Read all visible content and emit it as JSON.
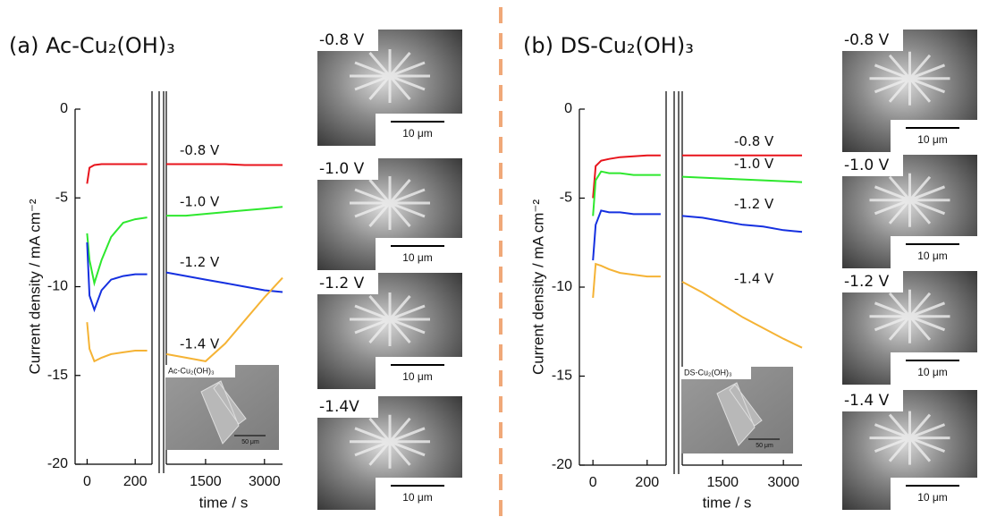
{
  "chart_data": [
    {
      "type": "line",
      "title": "(a) Ac-Cu₂(OH)₃",
      "ylabel": "Current density / mA cm⁻²",
      "xlabel": "time / s",
      "ylim": [
        -20,
        0
      ],
      "yticks": [
        0,
        -5,
        -10,
        -15,
        -20
      ],
      "x_segments": [
        {
          "xlim": [
            -50,
            270
          ],
          "xticks": [
            0,
            200
          ]
        },
        {
          "xlim": [
            500,
            3460
          ],
          "xticks": [
            1500,
            3000
          ]
        }
      ],
      "x": [
        0,
        10,
        30,
        60,
        100,
        150,
        200,
        250,
        500,
        1000,
        1500,
        2000,
        2500,
        3000,
        3460
      ],
      "series": [
        {
          "name": "-0.8 V",
          "color": "#e8141c",
          "values": [
            -4.2,
            -3.3,
            -3.15,
            -3.1,
            -3.1,
            -3.1,
            -3.1,
            -3.1,
            -3.1,
            -3.1,
            -3.1,
            -3.1,
            -3.15,
            -3.15,
            -3.15
          ]
        },
        {
          "name": "-1.0 V",
          "color": "#2ee82e",
          "values": [
            -7.0,
            -8.5,
            -9.8,
            -8.5,
            -7.2,
            -6.4,
            -6.2,
            -6.1,
            -6.0,
            -6.0,
            -5.9,
            -5.8,
            -5.7,
            -5.6,
            -5.5
          ]
        },
        {
          "name": "-1.2 V",
          "color": "#1530e0",
          "values": [
            -7.5,
            -10.5,
            -11.3,
            -10.2,
            -9.6,
            -9.4,
            -9.3,
            -9.3,
            -9.2,
            -9.4,
            -9.6,
            -9.8,
            -10.0,
            -10.2,
            -10.3
          ]
        },
        {
          "name": "-1.4 V",
          "color": "#f5b335",
          "values": [
            -12.0,
            -13.5,
            -14.2,
            -14.0,
            -13.8,
            -13.7,
            -13.6,
            -13.6,
            -13.8,
            -14.0,
            -14.2,
            -13.2,
            -11.9,
            -10.6,
            -9.5
          ]
        }
      ],
      "inset": {
        "label": "Ac-Cu₂(OH)₃",
        "scale": "50 μm"
      },
      "images": [
        {
          "label": "-0.8 V",
          "scale": "10 μm"
        },
        {
          "label": "-1.0 V",
          "scale": "10 μm"
        },
        {
          "label": "-1.2 V",
          "scale": "10 μm"
        },
        {
          "label": "-1.4V",
          "scale": "10 μm"
        }
      ]
    },
    {
      "type": "line",
      "title": "(b) DS-Cu₂(OH)₃",
      "ylabel": "Current density / mA cm⁻²",
      "xlabel": "time / s",
      "ylim": [
        -20,
        0
      ],
      "yticks": [
        0,
        -5,
        -10,
        -15,
        -20
      ],
      "x_segments": [
        {
          "xlim": [
            -50,
            270
          ],
          "xticks": [
            0,
            200
          ]
        },
        {
          "xlim": [
            500,
            3460
          ],
          "xticks": [
            1500,
            3000
          ]
        }
      ],
      "x": [
        0,
        10,
        30,
        60,
        100,
        150,
        200,
        250,
        500,
        1000,
        1500,
        2000,
        2500,
        3000,
        3460
      ],
      "series": [
        {
          "name": "-0.8 V",
          "color": "#e8141c",
          "values": [
            -5.0,
            -3.2,
            -2.9,
            -2.8,
            -2.7,
            -2.65,
            -2.6,
            -2.6,
            -2.6,
            -2.6,
            -2.6,
            -2.6,
            -2.6,
            -2.6,
            -2.6
          ]
        },
        {
          "name": "-1.0 V",
          "color": "#2ee82e",
          "values": [
            -6.0,
            -4.0,
            -3.5,
            -3.6,
            -3.6,
            -3.7,
            -3.7,
            -3.7,
            -3.8,
            -3.85,
            -3.9,
            -3.95,
            -4.0,
            -4.05,
            -4.1
          ]
        },
        {
          "name": "-1.2 V",
          "color": "#1530e0",
          "values": [
            -8.5,
            -6.5,
            -5.7,
            -5.8,
            -5.8,
            -5.9,
            -5.9,
            -5.9,
            -6.0,
            -6.1,
            -6.3,
            -6.5,
            -6.6,
            -6.8,
            -6.9
          ]
        },
        {
          "name": "-1.4 V",
          "color": "#f5b335",
          "values": [
            -10.6,
            -8.7,
            -8.8,
            -9.0,
            -9.2,
            -9.3,
            -9.4,
            -9.4,
            -9.7,
            -10.3,
            -11.0,
            -11.7,
            -12.3,
            -12.9,
            -13.4
          ]
        }
      ],
      "inset": {
        "label": "DS-Cu₂(OH)₃",
        "scale": "50 μm"
      },
      "images": [
        {
          "label": "-0.8 V",
          "scale": "10 μm"
        },
        {
          "label": "-1.0 V",
          "scale": "10 μm"
        },
        {
          "label": "-1.2 V",
          "scale": "10 μm"
        },
        {
          "label": "-1.4 V",
          "scale": "10 μm"
        }
      ]
    }
  ]
}
